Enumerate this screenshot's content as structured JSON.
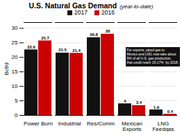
{
  "chart_data": {
    "type": "bar",
    "title": "U.S. Natural Gas Demand",
    "subtitle": "(year-to-date)",
    "ylabel": "Bcf/d",
    "categories": [
      "Power Burn",
      "Industrial",
      "Res/Comm",
      "Mexican\nExports",
      "LNG\nFeedgas"
    ],
    "series": [
      {
        "name": "2017",
        "color": "#111111",
        "values": [
          22.6,
          21.5,
          26.8,
          4,
          1.9
        ]
      },
      {
        "name": "2016",
        "color": "#cc0000",
        "values": [
          25.7,
          21.4,
          28,
          3.4,
          0.4
        ]
      }
    ],
    "ylim": [
      0,
      32
    ],
    "yticks": [
      0,
      5,
      10,
      15,
      20,
      25,
      30
    ],
    "grid": true,
    "legend": "top",
    "data_labels": true,
    "annotation": "For exports, piped gas to\nMexico and LNG now take about\n9% of all U.S. gas production,\nthat could reach 15-17%  by 2018."
  }
}
